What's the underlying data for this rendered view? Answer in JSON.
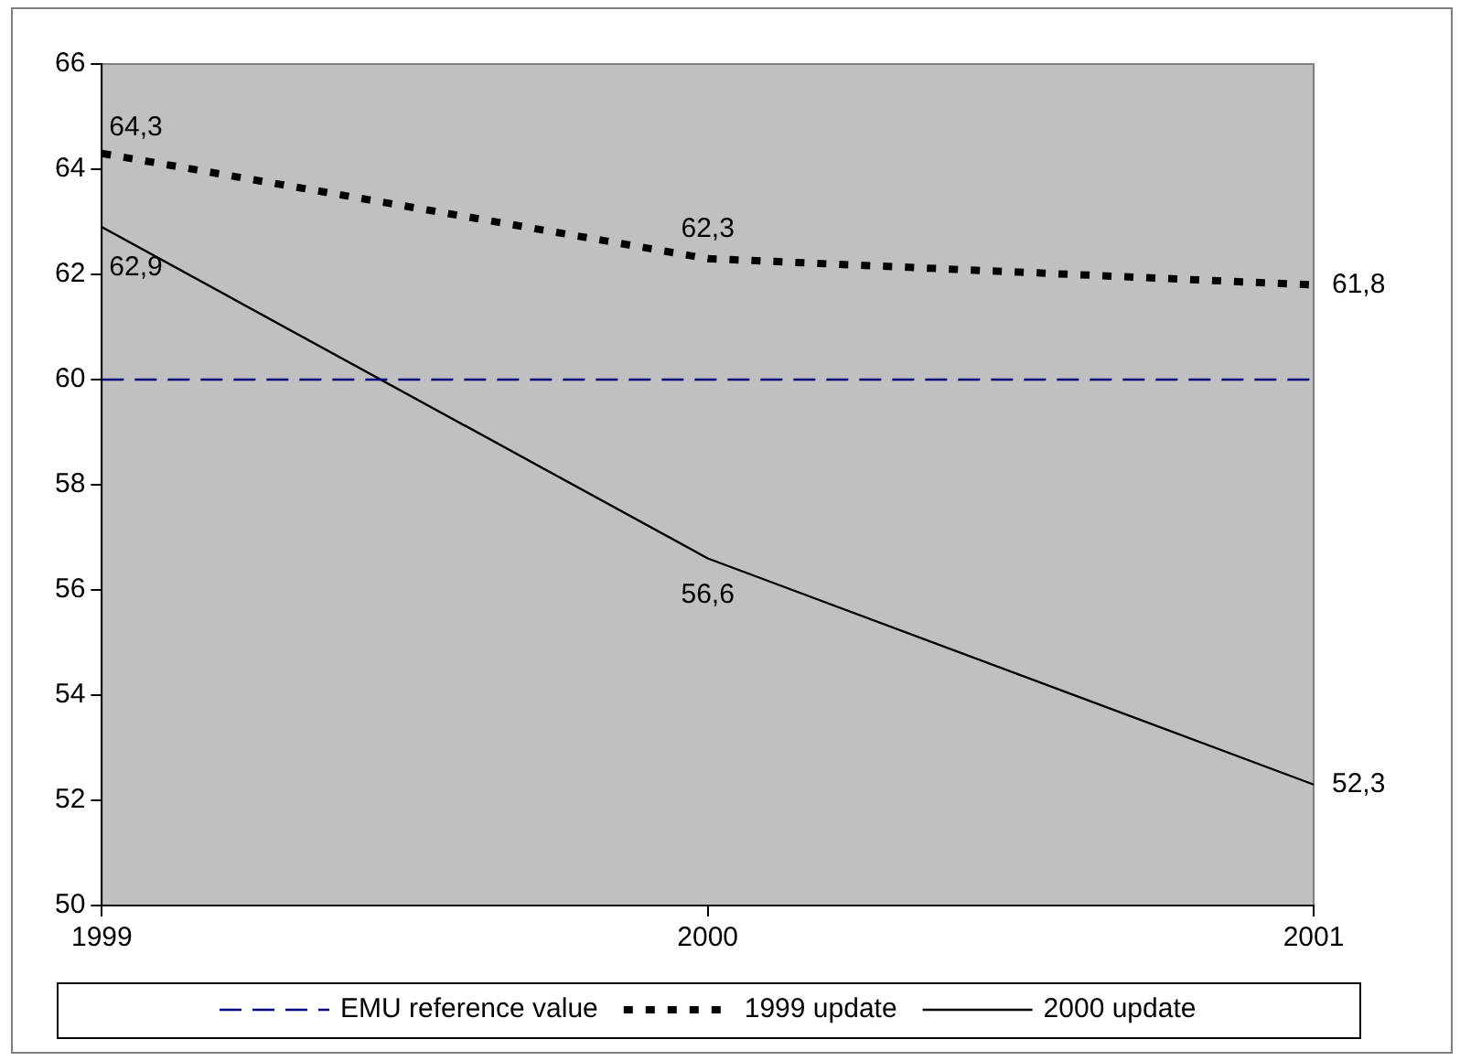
{
  "chart_data": {
    "type": "line",
    "categories": [
      "1999",
      "2000",
      "2001"
    ],
    "ylim": [
      50,
      66
    ],
    "yticks": [
      50,
      52,
      54,
      56,
      58,
      60,
      62,
      64,
      66
    ],
    "grid": false,
    "legend": "bottom",
    "marker": "none",
    "series": [
      {
        "name": "EMU reference value",
        "color": "#000080",
        "line_style": "dashed",
        "values": [
          60,
          60,
          60
        ]
      },
      {
        "name": "1999 update",
        "color": "#000000",
        "line_style": "dotted",
        "values": [
          64.3,
          62.3,
          61.8
        ],
        "value_labels": [
          "64,3",
          "62,3",
          "61,8"
        ]
      },
      {
        "name": "2000 update",
        "color": "#000000",
        "line_style": "solid",
        "values": [
          62.9,
          56.6,
          52.3
        ],
        "value_labels": [
          "62,9",
          "56,6",
          "52,3"
        ]
      }
    ]
  }
}
